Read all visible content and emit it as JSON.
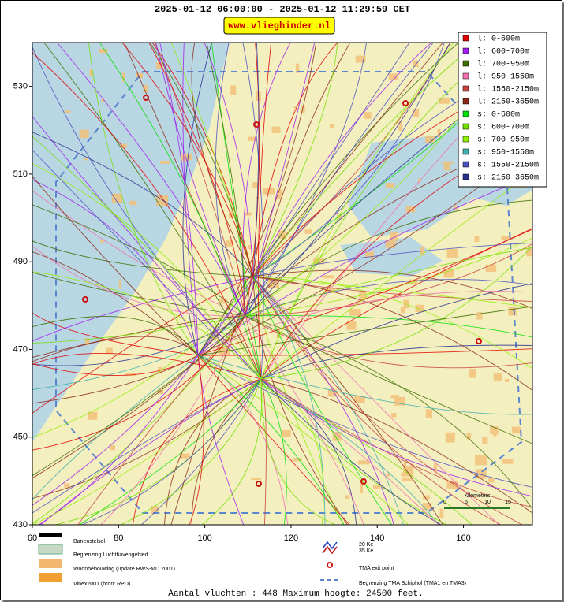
{
  "header": {
    "title": "2025-01-12 06:00:00 - 2025-01-12 11:29:59 CET",
    "badge": "www.vlieghinder.nl"
  },
  "axes": {
    "xlim": [
      60,
      176
    ],
    "ylim": [
      430,
      540
    ],
    "xticks": [
      60,
      80,
      100,
      120,
      140,
      160
    ],
    "yticks": [
      430,
      450,
      470,
      490,
      510,
      530
    ]
  },
  "legend": [
    {
      "label": "l: 0-600m",
      "color": "#e00000"
    },
    {
      "label": "l: 600-700m",
      "color": "#a020f0"
    },
    {
      "label": "l: 700-950m",
      "color": "#3c6e00"
    },
    {
      "label": "l: 950-1550m",
      "color": "#f070b0"
    },
    {
      "label": "l: 1550-2150m",
      "color": "#c84040"
    },
    {
      "label": "l: 2150-3650m",
      "color": "#8b2a1a"
    },
    {
      "label": "s: 0-600m",
      "color": "#00e000"
    },
    {
      "label": "s: 600-700m",
      "color": "#70e000"
    },
    {
      "label": "s: 700-950m",
      "color": "#90f000"
    },
    {
      "label": "s: 950-1550m",
      "color": "#40b0b0"
    },
    {
      "label": "s: 1550-2150m",
      "color": "#4a50c0"
    },
    {
      "label": "s: 2150-3650m",
      "color": "#2a3090"
    }
  ],
  "scale": {
    "title": "Kilometers",
    "ticks": [
      "0",
      "5",
      "10",
      "15"
    ]
  },
  "map_legend": {
    "runways": "Banenstelsel",
    "airport_boundary": "Begrenzing Luchthavengebied",
    "housing": "Woonbebouwing (update RWS-MD 2001)",
    "vinex": "Vinex2001 (bron: RPD)",
    "ke20": "20 Ke",
    "ke35": "35 Ke",
    "tma_exit": "TMA exit point",
    "tma_boundary": "Begrenzing TMA Schiphol  (TMA1 en TMA3)"
  },
  "footer": "Aantal vluchten : 448 Maximum hoogte: 24500 feet."
}
